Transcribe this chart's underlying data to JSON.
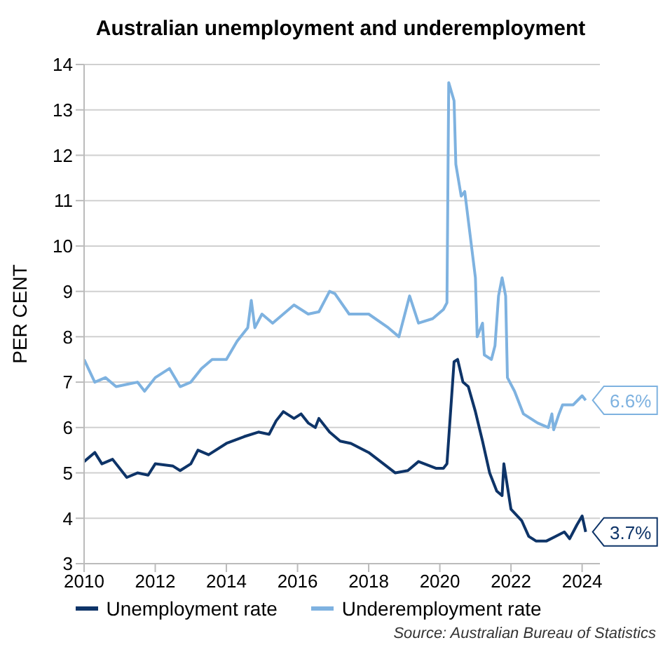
{
  "chart_data": {
    "type": "line",
    "title": "Australian unemployment and underemployment",
    "ylabel": "PER CENT",
    "annotations": [
      "Source: Australian Bureau of Statistics"
    ],
    "xlim": [
      2010,
      2024.5
    ],
    "xticks": [
      2010,
      2012,
      2014,
      2016,
      2018,
      2020,
      2022,
      2024
    ],
    "ylim": [
      3,
      14
    ],
    "yticks": [
      3,
      4,
      5,
      6,
      7,
      8,
      9,
      10,
      11,
      12,
      13,
      14
    ],
    "grid": "y",
    "legend": "bottom",
    "marker": "none",
    "line_style": "solid",
    "series": [
      {
        "name": "Unemployment rate",
        "color": "#0e3468",
        "x": [
          2010,
          2010.3,
          2010.5,
          2010.8,
          2011.2,
          2011.5,
          2011.8,
          2012,
          2012.5,
          2012.7,
          2013,
          2013.2,
          2013.5,
          2014,
          2014.5,
          2014.9,
          2015.2,
          2015.4,
          2015.6,
          2015.9,
          2016.1,
          2016.3,
          2016.5,
          2016.6,
          2016.9,
          2017.2,
          2017.5,
          2018,
          2018.75,
          2019.1,
          2019.4,
          2019.9,
          2020.1,
          2020.2,
          2020.4,
          2020.5,
          2020.65,
          2020.8,
          2021,
          2021.2,
          2021.4,
          2021.6,
          2021.75,
          2021.8,
          2022,
          2022.3,
          2022.5,
          2022.7,
          2023,
          2023.25,
          2023.5,
          2023.65,
          2023.85,
          2024,
          2024.1
        ],
        "values": [
          5.25,
          5.45,
          5.2,
          5.3,
          4.9,
          5.0,
          4.95,
          5.2,
          5.15,
          5.05,
          5.2,
          5.5,
          5.4,
          5.65,
          5.8,
          5.9,
          5.85,
          6.15,
          6.35,
          6.2,
          6.3,
          6.1,
          6.0,
          6.2,
          5.9,
          5.7,
          5.65,
          5.45,
          5.0,
          5.05,
          5.25,
          5.1,
          5.1,
          5.2,
          7.45,
          7.5,
          7.0,
          6.9,
          6.35,
          5.7,
          5.0,
          4.6,
          4.5,
          5.2,
          4.2,
          3.95,
          3.6,
          3.5,
          3.5,
          3.6,
          3.7,
          3.55,
          3.85,
          4.05,
          3.7
        ],
        "value_labels": [
          null,
          null,
          null,
          null,
          null,
          null,
          null,
          null,
          null,
          null,
          null,
          null,
          null,
          null,
          null,
          null,
          null,
          null,
          null,
          null,
          null,
          null,
          null,
          null,
          null,
          null,
          null,
          null,
          null,
          null,
          null,
          null,
          null,
          null,
          null,
          null,
          null,
          null,
          null,
          null,
          null,
          null,
          null,
          null,
          null,
          null,
          null,
          null,
          null,
          null,
          null,
          null,
          null,
          null,
          "3.7%"
        ]
      },
      {
        "name": "Underemployment rate",
        "color": "#7eb2e0",
        "x": [
          2010,
          2010.3,
          2010.6,
          2010.9,
          2011.2,
          2011.5,
          2011.7,
          2012,
          2012.4,
          2012.7,
          2013,
          2013.3,
          2013.6,
          2014,
          2014.3,
          2014.6,
          2014.7,
          2014.8,
          2015,
          2015.3,
          2015.6,
          2015.9,
          2016.3,
          2016.6,
          2016.9,
          2017.05,
          2017.45,
          2018,
          2018.55,
          2018.85,
          2019.15,
          2019.4,
          2019.8,
          2020.1,
          2020.2,
          2020.25,
          2020.4,
          2020.45,
          2020.6,
          2020.7,
          2021,
          2021.05,
          2021.2,
          2021.25,
          2021.45,
          2021.55,
          2021.65,
          2021.75,
          2021.85,
          2021.9,
          2022.1,
          2022.35,
          2022.75,
          2023.05,
          2023.15,
          2023.2,
          2023.35,
          2023.45,
          2023.75,
          2024,
          2024.1
        ],
        "values": [
          7.5,
          7.0,
          7.1,
          6.9,
          6.95,
          7.0,
          6.8,
          7.1,
          7.3,
          6.9,
          7.0,
          7.3,
          7.5,
          7.5,
          7.9,
          8.2,
          8.8,
          8.2,
          8.5,
          8.3,
          8.5,
          8.7,
          8.5,
          8.55,
          9.0,
          8.95,
          8.5,
          8.5,
          8.2,
          8.0,
          8.9,
          8.3,
          8.4,
          8.6,
          8.75,
          13.6,
          13.2,
          11.8,
          11.1,
          11.2,
          9.3,
          8.0,
          8.3,
          7.6,
          7.5,
          7.8,
          8.9,
          9.3,
          8.9,
          7.1,
          6.8,
          6.3,
          6.1,
          6.0,
          6.3,
          5.95,
          6.3,
          6.5,
          6.5,
          6.7,
          6.6
        ],
        "value_labels": [
          null,
          null,
          null,
          null,
          null,
          null,
          null,
          null,
          null,
          null,
          null,
          null,
          null,
          null,
          null,
          null,
          null,
          null,
          null,
          null,
          null,
          null,
          null,
          null,
          null,
          null,
          null,
          null,
          null,
          null,
          null,
          null,
          null,
          null,
          null,
          null,
          null,
          null,
          null,
          null,
          null,
          null,
          null,
          null,
          null,
          null,
          null,
          null,
          null,
          null,
          null,
          null,
          null,
          null,
          null,
          null,
          null,
          null,
          null,
          null,
          "6.6%"
        ]
      }
    ]
  }
}
